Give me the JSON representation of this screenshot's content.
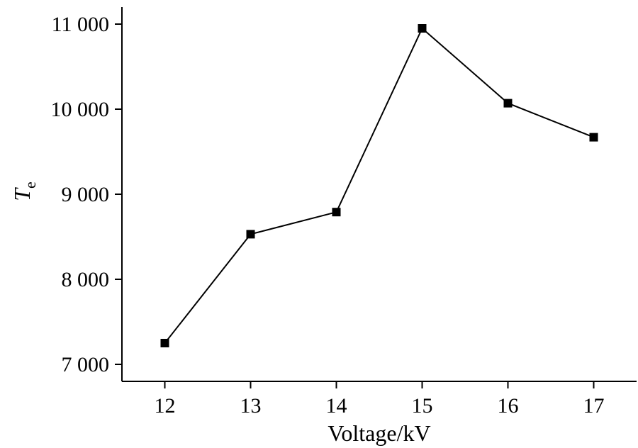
{
  "chart_data": {
    "type": "line",
    "title": "",
    "xlabel": "Voltage/kV",
    "ylabel_main": "T",
    "ylabel_sub": "e",
    "x": [
      12,
      13,
      14,
      15,
      16,
      17
    ],
    "x_tick_labels": [
      "12",
      "13",
      "14",
      "15",
      "16",
      "17"
    ],
    "series": [
      {
        "values": [
          7250,
          8530,
          8790,
          10950,
          10070,
          9670
        ]
      }
    ],
    "y_ticks": [
      7000,
      8000,
      9000,
      10000,
      11000
    ],
    "y_tick_labels": [
      "7 000",
      "8 000",
      "9 000",
      "10 000",
      "11 000"
    ],
    "xlim": [
      11.5,
      17.5
    ],
    "ylim": [
      6800,
      11200
    ],
    "grid": false,
    "legend": "none",
    "marker": "square",
    "color": "#000000"
  }
}
